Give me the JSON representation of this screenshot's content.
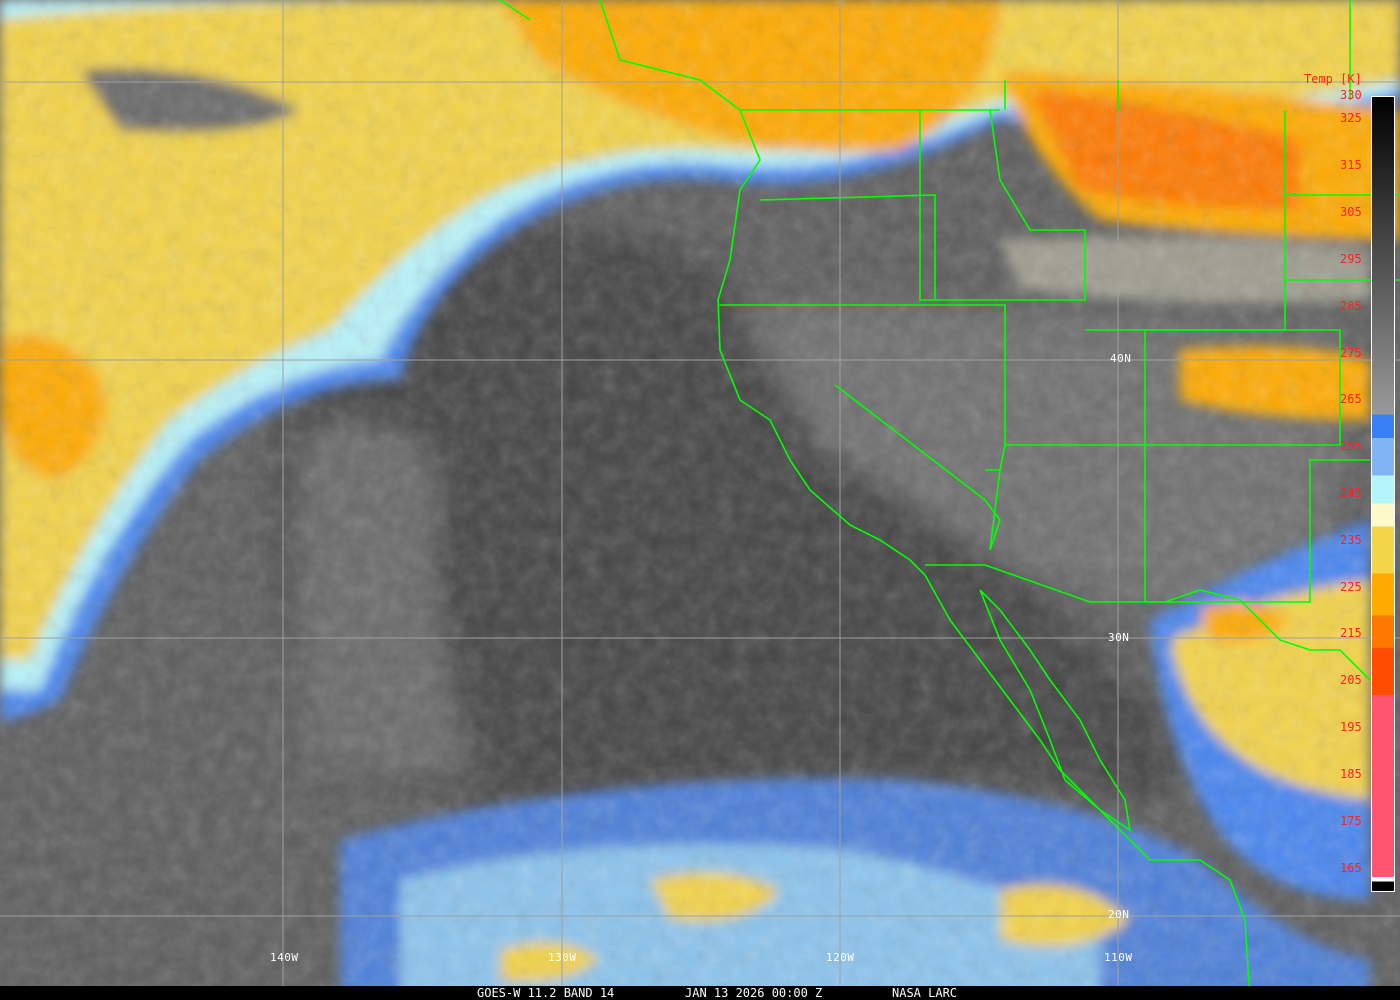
{
  "caption": {
    "satellite": "GOES-W 11.2 BAND 14",
    "datetime": "JAN 13 2026 00:00 Z",
    "source": "NASA LARC"
  },
  "grid": {
    "lat_labels": [
      "40N",
      "30N",
      "20N"
    ],
    "lon_labels": [
      "140W",
      "130W",
      "120W",
      "110W"
    ],
    "line_color": "#a0a0a0"
  },
  "boundary_color": "#00ff00",
  "colorbar": {
    "title": "Temp [K]",
    "range_k": [
      160,
      330
    ],
    "tick_labels": [
      "330",
      "325",
      "315",
      "305",
      "295",
      "285",
      "275",
      "265",
      "255",
      "245",
      "235",
      "225",
      "215",
      "205",
      "195",
      "185",
      "175",
      "165"
    ],
    "label_color": "#ff2020",
    "segments": [
      {
        "from": 330,
        "to": 262,
        "color": "gradient-black-to-gray"
      },
      {
        "from": 262,
        "to": 257,
        "color": "#3a80f5"
      },
      {
        "from": 257,
        "to": 249,
        "color": "#80b4f5"
      },
      {
        "from": 249,
        "to": 243,
        "color": "#b4f5fa"
      },
      {
        "from": 243,
        "to": 238,
        "color": "#fff8c8"
      },
      {
        "from": 238,
        "to": 228,
        "color": "#f5d54a"
      },
      {
        "from": 228,
        "to": 219,
        "color": "#ffaa00"
      },
      {
        "from": 219,
        "to": 212,
        "color": "#ff7800"
      },
      {
        "from": 212,
        "to": 202,
        "color": "#ff4c00"
      },
      {
        "from": 202,
        "to": 163,
        "color": "#ff5570"
      },
      {
        "from": 163,
        "to": 162,
        "color": "#ffffff"
      },
      {
        "from": 162,
        "to": 160,
        "color": "#000000"
      }
    ]
  }
}
